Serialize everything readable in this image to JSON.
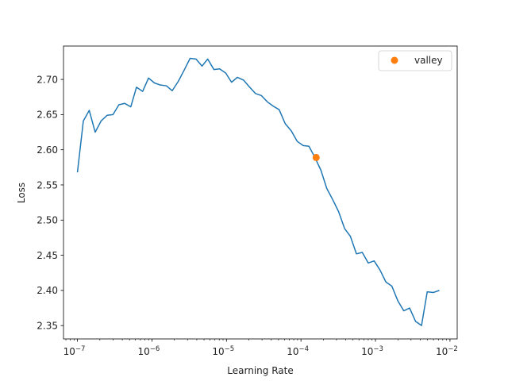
{
  "chart_data": {
    "type": "line",
    "x_scale": "log",
    "xlabel": "Learning Rate",
    "ylabel": "Loss",
    "xlim": [
      6.5e-08,
      0.0125
    ],
    "ylim": [
      2.331,
      2.7475
    ],
    "x_ticks": [
      {
        "value": 1e-07,
        "base": "10",
        "exp": "−7"
      },
      {
        "value": 1e-06,
        "base": "10",
        "exp": "−6"
      },
      {
        "value": 1e-05,
        "base": "10",
        "exp": "−5"
      },
      {
        "value": 0.0001,
        "base": "10",
        "exp": "−4"
      },
      {
        "value": 0.001,
        "base": "10",
        "exp": "−3"
      },
      {
        "value": 0.01,
        "base": "10",
        "exp": "−2"
      }
    ],
    "y_ticks": [
      "2.35",
      "2.40",
      "2.45",
      "2.50",
      "2.55",
      "2.60",
      "2.65",
      "2.70"
    ],
    "grid": false,
    "legend_position": "top-right",
    "series": [
      {
        "color": "#1f77b4",
        "x": [
          1e-07,
          1.2e-07,
          1.44e-07,
          1.73e-07,
          2.08e-07,
          2.5e-07,
          3e-07,
          3.6e-07,
          4.3e-07,
          5.2e-07,
          6.2e-07,
          7.5e-07,
          9e-07,
          1.08e-06,
          1.3e-06,
          1.56e-06,
          1.87e-06,
          2.25e-06,
          2.7e-06,
          3.25e-06,
          3.9e-06,
          4.7e-06,
          5.6e-06,
          6.8e-06,
          8.1e-06,
          9.8e-06,
          1.17e-05,
          1.4e-05,
          1.7e-05,
          2.05e-05,
          2.45e-05,
          2.95e-05,
          3.55e-05,
          4.25e-05,
          5.1e-05,
          6.15e-05,
          7.4e-05,
          8.9e-05,
          0.000107,
          0.000128,
          0.000154,
          0.000185,
          0.000222,
          0.000267,
          0.00032,
          0.000385,
          0.00046,
          0.000555,
          0.000665,
          0.0008,
          0.00096,
          0.00115,
          0.00138,
          0.00166,
          0.002,
          0.0024,
          0.00287,
          0.00345,
          0.00415,
          0.00495,
          0.00595,
          0.0072
        ],
        "y": [
          2.568,
          2.641,
          2.656,
          2.625,
          2.641,
          2.649,
          2.65,
          2.664,
          2.666,
          2.661,
          2.689,
          2.683,
          2.702,
          2.695,
          2.692,
          2.691,
          2.684,
          2.697,
          2.713,
          2.73,
          2.729,
          2.719,
          2.729,
          2.714,
          2.715,
          2.709,
          2.696,
          2.703,
          2.699,
          2.689,
          2.68,
          2.677,
          2.668,
          2.662,
          2.657,
          2.637,
          2.627,
          2.612,
          2.606,
          2.605,
          2.589,
          2.571,
          2.545,
          2.529,
          2.512,
          2.488,
          2.477,
          2.452,
          2.454,
          2.439,
          2.442,
          2.429,
          2.412,
          2.406,
          2.385,
          2.371,
          2.375,
          2.356,
          2.35,
          2.398,
          2.397,
          2.4
        ]
      }
    ],
    "markers": [
      {
        "name": "valley",
        "x": 0.00016,
        "y": 2.589,
        "color": "#ff7f0e"
      }
    ]
  }
}
